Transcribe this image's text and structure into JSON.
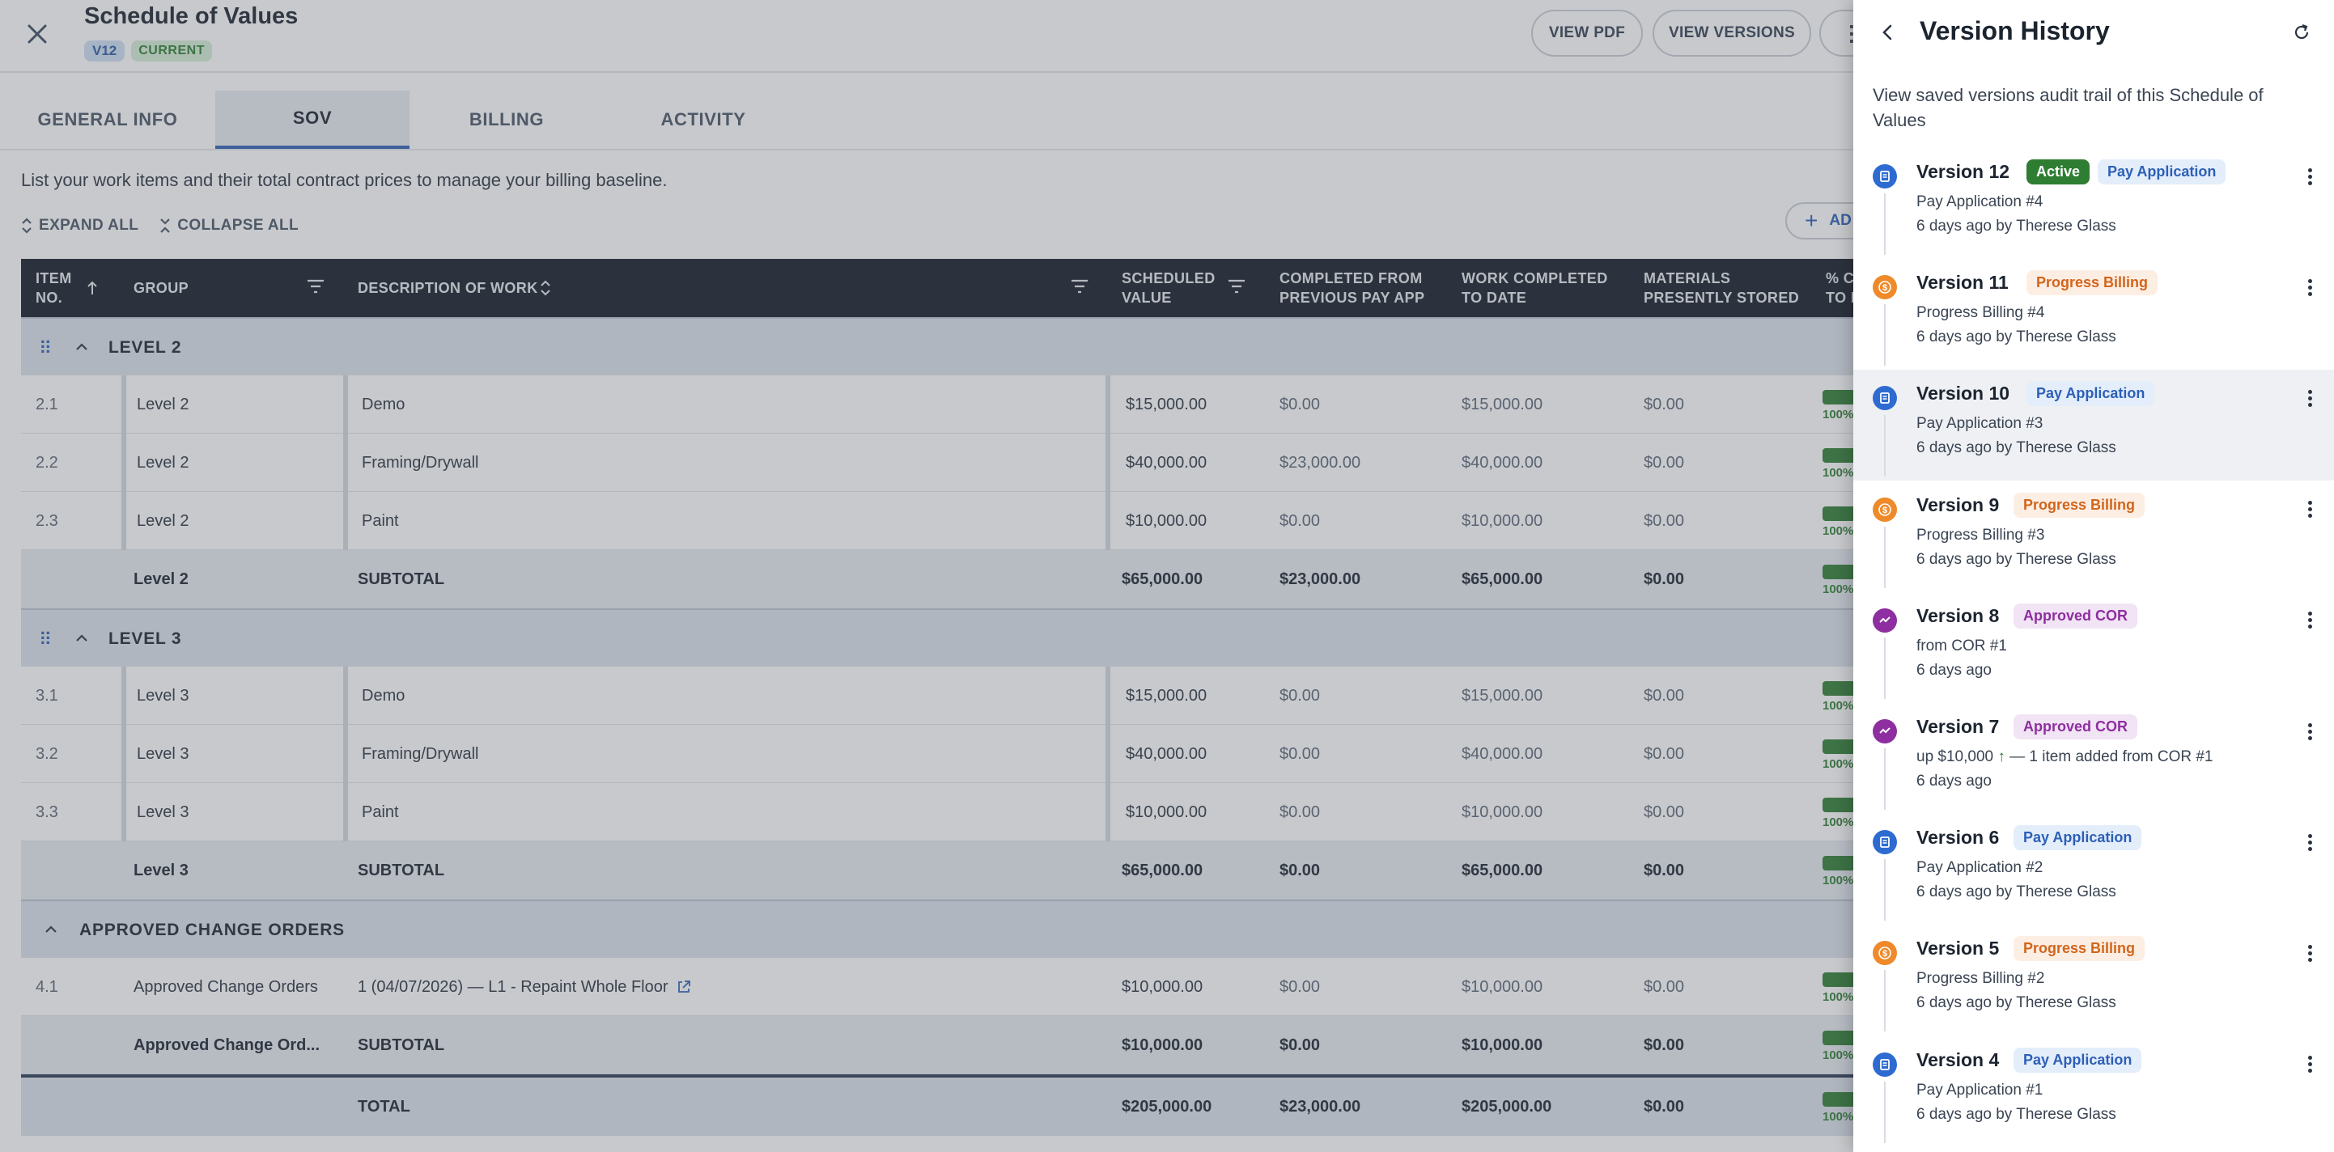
{
  "header": {
    "title": "Schedule of Values",
    "version_badge": "V12",
    "current_badge": "CURRENT",
    "view_pdf": "VIEW PDF",
    "view_versions": "VIEW VERSIONS"
  },
  "tabs": [
    {
      "label": "GENERAL INFO"
    },
    {
      "label": "SOV"
    },
    {
      "label": "BILLING"
    },
    {
      "label": "ACTIVITY"
    }
  ],
  "description": "List your work items and their total contract prices to manage your billing baseline.",
  "toolbar": {
    "expand_all": "EXPAND ALL",
    "collapse_all": "COLLAPSE ALL",
    "add_label": "AD"
  },
  "table": {
    "columns": {
      "item_no_1": "ITEM",
      "item_no_2": "NO.",
      "group": "GROUP",
      "description": "DESCRIPTION OF WORK",
      "scheduled_1": "SCHEDULED",
      "scheduled_2": "VALUE",
      "completed_prev_1": "COMPLETED FROM",
      "completed_prev_2": "PREVIOUS PAY APP",
      "work_completed_1": "WORK COMPLETED",
      "work_completed_2": "TO DATE",
      "materials_1": "MATERIALS",
      "materials_2": "PRESENTLY STORED",
      "pct_1": "% C",
      "pct_2": "TO D"
    },
    "groups": [
      {
        "title": "LEVEL 2",
        "rows": [
          {
            "item": "2.1",
            "group": "Level 2",
            "description": "Demo",
            "scheduled": "$15,000.00",
            "previous": "$0.00",
            "to_date": "$15,000.00",
            "materials": "$0.00",
            "pct": "100%",
            "pct_value": 1.0
          },
          {
            "item": "2.2",
            "group": "Level 2",
            "description": "Framing/Drywall",
            "scheduled": "$40,000.00",
            "previous": "$23,000.00",
            "to_date": "$40,000.00",
            "materials": "$0.00",
            "pct": "100%",
            "pct_value": 1.0
          },
          {
            "item": "2.3",
            "group": "Level 2",
            "description": "Paint",
            "scheduled": "$10,000.00",
            "previous": "$0.00",
            "to_date": "$10,000.00",
            "materials": "$0.00",
            "pct": "100%",
            "pct_value": 1.0
          }
        ],
        "subtotal": {
          "group": "Level 2",
          "label": "SUBTOTAL",
          "scheduled": "$65,000.00",
          "previous": "$23,000.00",
          "to_date": "$65,000.00",
          "materials": "$0.00",
          "pct": "100%",
          "pct_value": 1.0
        }
      },
      {
        "title": "LEVEL 3",
        "rows": [
          {
            "item": "3.1",
            "group": "Level 3",
            "description": "Demo",
            "scheduled": "$15,000.00",
            "previous": "$0.00",
            "to_date": "$15,000.00",
            "materials": "$0.00",
            "pct": "100%",
            "pct_value": 1.0
          },
          {
            "item": "3.2",
            "group": "Level 3",
            "description": "Framing/Drywall",
            "scheduled": "$40,000.00",
            "previous": "$0.00",
            "to_date": "$40,000.00",
            "materials": "$0.00",
            "pct": "100%",
            "pct_value": 1.0
          },
          {
            "item": "3.3",
            "group": "Level 3",
            "description": "Paint",
            "scheduled": "$10,000.00",
            "previous": "$0.00",
            "to_date": "$10,000.00",
            "materials": "$0.00",
            "pct": "100%",
            "pct_value": 1.0
          }
        ],
        "subtotal": {
          "group": "Level 3",
          "label": "SUBTOTAL",
          "scheduled": "$65,000.00",
          "previous": "$0.00",
          "to_date": "$65,000.00",
          "materials": "$0.00",
          "pct": "100%",
          "pct_value": 1.0
        }
      },
      {
        "title": "APPROVED CHANGE ORDERS",
        "rows": [
          {
            "item": "4.1",
            "group": "Approved Change Orders",
            "description": "1 (04/07/2026) — L1 - Repaint Whole Floor",
            "scheduled": "$10,000.00",
            "previous": "$0.00",
            "to_date": "$10,000.00",
            "materials": "$0.00",
            "pct": "100%",
            "pct_value": 1.0
          }
        ],
        "subtotal": {
          "group": "Approved Change Ord...",
          "label": "SUBTOTAL",
          "scheduled": "$10,000.00",
          "previous": "$0.00",
          "to_date": "$10,000.00",
          "materials": "$0.00",
          "pct": "100%",
          "pct_value": 1.0
        }
      }
    ],
    "total": {
      "label": "TOTAL",
      "scheduled": "$205,000.00",
      "previous": "$23,000.00",
      "to_date": "$205,000.00",
      "materials": "$0.00",
      "pct": "100%",
      "pct_value": 1.0
    }
  },
  "panel": {
    "title": "Version History",
    "subtitle": "View saved versions audit trail of this Schedule of Values",
    "versions": [
      {
        "name": "Version 12",
        "tags": [
          {
            "label": "Active",
            "kind": "active"
          },
          {
            "label": "Pay Application",
            "kind": "pay"
          }
        ],
        "kind": "pay",
        "line1": "Pay Application #4",
        "line2": "6 days ago by Therese Glass"
      },
      {
        "name": "Version 11",
        "tags": [
          {
            "label": "Progress Billing",
            "kind": "prog"
          }
        ],
        "kind": "prog",
        "line1": "Progress Billing #4",
        "line2": "6 days ago by Therese Glass"
      },
      {
        "name": "Version 10",
        "tags": [
          {
            "label": "Pay Application",
            "kind": "pay"
          }
        ],
        "kind": "pay",
        "line1": "Pay Application #3",
        "line2": "6 days ago by Therese Glass",
        "selected": true
      },
      {
        "name": "Version 9",
        "tags": [
          {
            "label": "Progress Billing",
            "kind": "prog"
          }
        ],
        "kind": "prog",
        "line1": "Progress Billing #3",
        "line2": "6 days ago by Therese Glass"
      },
      {
        "name": "Version 8",
        "tags": [
          {
            "label": "Approved COR",
            "kind": "cor"
          }
        ],
        "kind": "cor",
        "line1": "from COR #1",
        "line2": "6 days ago"
      },
      {
        "name": "Version 7",
        "tags": [
          {
            "label": "Approved COR",
            "kind": "cor"
          }
        ],
        "kind": "cor",
        "line1_a": "up $10,000",
        "line1_b": " — 1 item added from COR #1",
        "line2": "6 days ago"
      },
      {
        "name": "Version 6",
        "tags": [
          {
            "label": "Pay Application",
            "kind": "pay"
          }
        ],
        "kind": "pay",
        "line1": "Pay Application #2",
        "line2": "6 days ago by Therese Glass"
      },
      {
        "name": "Version 5",
        "tags": [
          {
            "label": "Progress Billing",
            "kind": "prog"
          }
        ],
        "kind": "prog",
        "line1": "Progress Billing #2",
        "line2": "6 days ago by Therese Glass"
      },
      {
        "name": "Version 4",
        "tags": [
          {
            "label": "Pay Application",
            "kind": "pay"
          }
        ],
        "kind": "pay",
        "line1": "Pay Application #1",
        "line2": "6 days ago by Therese Glass"
      }
    ]
  },
  "colors": {
    "pay": "#2d6bd1",
    "prog": "#ef8a2a",
    "cor": "#8e2ea0",
    "active": "#2e7d32",
    "header_bg": "#141b26"
  }
}
